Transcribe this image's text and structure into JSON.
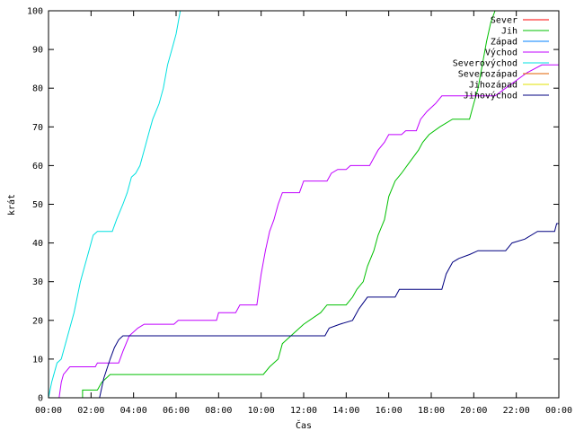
{
  "chart_data": {
    "type": "line",
    "xlabel": "Čas",
    "ylabel": "krát",
    "xlim": [
      0,
      24
    ],
    "ylim": [
      0,
      100
    ],
    "x_ticks": [
      {
        "value": 0,
        "label": "00:00"
      },
      {
        "value": 2,
        "label": "02:00"
      },
      {
        "value": 4,
        "label": "04:00"
      },
      {
        "value": 6,
        "label": "06:00"
      },
      {
        "value": 8,
        "label": "08:00"
      },
      {
        "value": 10,
        "label": "10:00"
      },
      {
        "value": 12,
        "label": "12:00"
      },
      {
        "value": 14,
        "label": "14:00"
      },
      {
        "value": 16,
        "label": "16:00"
      },
      {
        "value": 18,
        "label": "18:00"
      },
      {
        "value": 20,
        "label": "20:00"
      },
      {
        "value": 22,
        "label": "22:00"
      },
      {
        "value": 24,
        "label": "00:00"
      }
    ],
    "y_ticks": [
      0,
      10,
      20,
      30,
      40,
      50,
      60,
      70,
      80,
      90,
      100
    ],
    "grid": false,
    "legend_position": "top-right",
    "series": [
      {
        "name": "Sever",
        "color": "#ff0000",
        "points": []
      },
      {
        "name": "Jih",
        "color": "#00c000",
        "points": [
          [
            0,
            0
          ],
          [
            1.6,
            0
          ],
          [
            1.6,
            2
          ],
          [
            2.3,
            2
          ],
          [
            2.5,
            4
          ],
          [
            2.9,
            6
          ],
          [
            10.1,
            6
          ],
          [
            10.4,
            8
          ],
          [
            10.8,
            10
          ],
          [
            11.0,
            14
          ],
          [
            11.4,
            16
          ],
          [
            11.8,
            18
          ],
          [
            12.0,
            19
          ],
          [
            12.8,
            22
          ],
          [
            13.1,
            24
          ],
          [
            14.0,
            24
          ],
          [
            14.3,
            26
          ],
          [
            14.5,
            28
          ],
          [
            14.8,
            30
          ],
          [
            15.0,
            34
          ],
          [
            15.3,
            38
          ],
          [
            15.5,
            42
          ],
          [
            15.8,
            46
          ],
          [
            16.0,
            52
          ],
          [
            16.3,
            56
          ],
          [
            16.6,
            58
          ],
          [
            17.0,
            61
          ],
          [
            17.4,
            64
          ],
          [
            17.6,
            66
          ],
          [
            17.9,
            68
          ],
          [
            18.4,
            70
          ],
          [
            19.0,
            72
          ],
          [
            19.8,
            72
          ],
          [
            20.0,
            76
          ],
          [
            20.2,
            80
          ],
          [
            20.4,
            86
          ],
          [
            20.6,
            92
          ],
          [
            20.8,
            97
          ],
          [
            21.0,
            100
          ]
        ]
      },
      {
        "name": "Západ",
        "color": "#0080ff",
        "points": []
      },
      {
        "name": "Východ",
        "color": "#c000ff",
        "points": [
          [
            0,
            0
          ],
          [
            0.5,
            0
          ],
          [
            0.6,
            4
          ],
          [
            0.7,
            6
          ],
          [
            1.0,
            8
          ],
          [
            2.2,
            8
          ],
          [
            2.3,
            9
          ],
          [
            3.3,
            9
          ],
          [
            3.5,
            12
          ],
          [
            3.8,
            16
          ],
          [
            4.2,
            18
          ],
          [
            4.5,
            19
          ],
          [
            5.9,
            19
          ],
          [
            6.1,
            20
          ],
          [
            7.9,
            20
          ],
          [
            8.0,
            22
          ],
          [
            8.8,
            22
          ],
          [
            9.0,
            24
          ],
          [
            9.8,
            24
          ],
          [
            9.9,
            28
          ],
          [
            10.0,
            32
          ],
          [
            10.2,
            38
          ],
          [
            10.4,
            43
          ],
          [
            10.6,
            46
          ],
          [
            10.8,
            50
          ],
          [
            11.0,
            53
          ],
          [
            11.8,
            53
          ],
          [
            12.0,
            56
          ],
          [
            13.1,
            56
          ],
          [
            13.3,
            58
          ],
          [
            13.6,
            59
          ],
          [
            14.0,
            59
          ],
          [
            14.2,
            60
          ],
          [
            15.1,
            60
          ],
          [
            15.3,
            62
          ],
          [
            15.5,
            64
          ],
          [
            15.8,
            66
          ],
          [
            16.0,
            68
          ],
          [
            16.6,
            68
          ],
          [
            16.8,
            69
          ],
          [
            17.3,
            69
          ],
          [
            17.5,
            72
          ],
          [
            17.8,
            74
          ],
          [
            18.2,
            76
          ],
          [
            18.5,
            78
          ],
          [
            21.0,
            78
          ],
          [
            21.5,
            80
          ],
          [
            22.5,
            84
          ],
          [
            23.2,
            86
          ],
          [
            24,
            86
          ]
        ]
      },
      {
        "name": "Severovýchod",
        "color": "#00e0e0",
        "points": [
          [
            0,
            0
          ],
          [
            0.15,
            4
          ],
          [
            0.4,
            9
          ],
          [
            0.6,
            10
          ],
          [
            0.9,
            16
          ],
          [
            1.2,
            22
          ],
          [
            1.5,
            30
          ],
          [
            1.7,
            34
          ],
          [
            1.9,
            38
          ],
          [
            2.1,
            42
          ],
          [
            2.3,
            43
          ],
          [
            3.0,
            43
          ],
          [
            3.2,
            46
          ],
          [
            3.5,
            50
          ],
          [
            3.7,
            53
          ],
          [
            3.9,
            57
          ],
          [
            4.1,
            58
          ],
          [
            4.3,
            60
          ],
          [
            4.5,
            64
          ],
          [
            4.7,
            68
          ],
          [
            4.9,
            72
          ],
          [
            5.2,
            76
          ],
          [
            5.4,
            80
          ],
          [
            5.6,
            86
          ],
          [
            5.8,
            90
          ],
          [
            6.0,
            94
          ],
          [
            6.2,
            100
          ]
        ]
      },
      {
        "name": "Severozápad",
        "color": "#e06000",
        "points": []
      },
      {
        "name": "Jihozápad",
        "color": "#e0e000",
        "points": []
      },
      {
        "name": "Jihovýchod",
        "color": "#000080",
        "points": [
          [
            0,
            0
          ],
          [
            2.4,
            0
          ],
          [
            2.6,
            5
          ],
          [
            2.9,
            10
          ],
          [
            3.1,
            13
          ],
          [
            3.3,
            15
          ],
          [
            3.5,
            16
          ],
          [
            13.0,
            16
          ],
          [
            13.2,
            18
          ],
          [
            13.7,
            19
          ],
          [
            14.3,
            20
          ],
          [
            14.6,
            23
          ],
          [
            15.0,
            26
          ],
          [
            16.3,
            26
          ],
          [
            16.5,
            28
          ],
          [
            18.5,
            28
          ],
          [
            18.7,
            32
          ],
          [
            19.0,
            35
          ],
          [
            19.3,
            36
          ],
          [
            19.8,
            37
          ],
          [
            20.2,
            38
          ],
          [
            21.5,
            38
          ],
          [
            21.8,
            40
          ],
          [
            22.4,
            41
          ],
          [
            23.0,
            43
          ],
          [
            23.8,
            43
          ],
          [
            23.9,
            45
          ],
          [
            24,
            45
          ]
        ]
      }
    ]
  }
}
